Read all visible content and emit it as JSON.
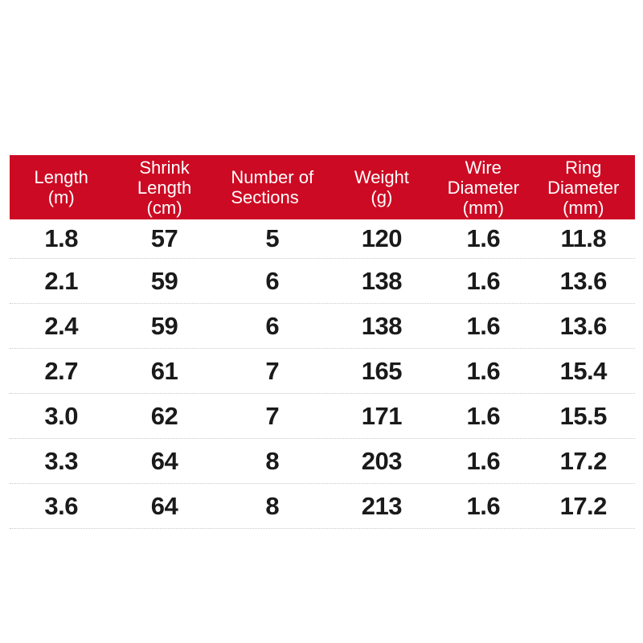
{
  "colors": {
    "background": "#ffffff",
    "header_bg": "#cd0a23",
    "header_text": "#ffffff",
    "value_text": "#1a1a1a",
    "divider": "#c9c9c9"
  },
  "table": {
    "headers": [
      "Length\n(m)",
      "Shrink\nLength\n(cm)",
      "Number of\nSections",
      "Weight\n(g)",
      "Wire\nDiameter\n(mm)",
      "Ring\nDiameter\n(mm)"
    ]
  },
  "chart_data": {
    "type": "table",
    "title": "",
    "columns": [
      "Length (m)",
      "Shrink Length (cm)",
      "Number of Sections",
      "Weight (g)",
      "Wire Diameter (mm)",
      "Ring Diameter (mm)"
    ],
    "rows": [
      [
        "1.8",
        "57",
        "5",
        "120",
        "1.6",
        "11.8"
      ],
      [
        "2.1",
        "59",
        "6",
        "138",
        "1.6",
        "13.6"
      ],
      [
        "2.4",
        "59",
        "6",
        "138",
        "1.6",
        "13.6"
      ],
      [
        "2.7",
        "61",
        "7",
        "165",
        "1.6",
        "15.4"
      ],
      [
        "3.0",
        "62",
        "7",
        "171",
        "1.6",
        "15.5"
      ],
      [
        "3.3",
        "64",
        "8",
        "203",
        "1.6",
        "17.2"
      ],
      [
        "3.6",
        "64",
        "8",
        "213",
        "1.6",
        "17.2"
      ]
    ]
  }
}
